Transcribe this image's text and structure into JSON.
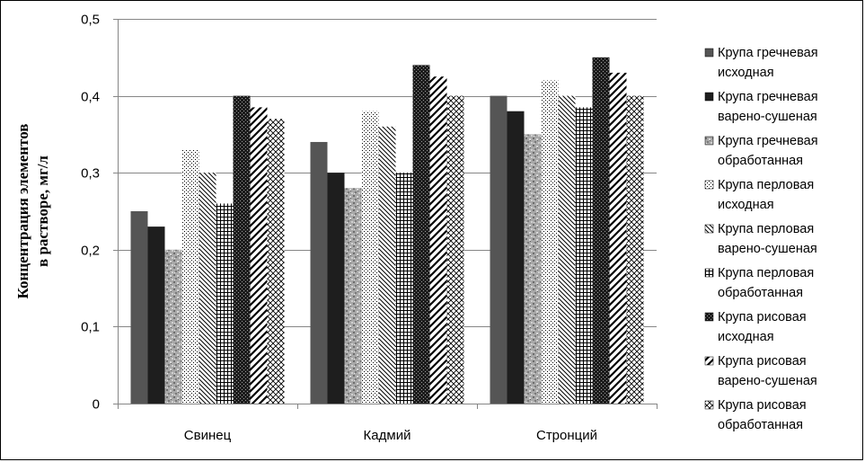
{
  "chart_data": {
    "type": "bar",
    "title": "",
    "xlabel": "",
    "ylabel_lines": [
      "Концентрация элементов",
      "в растворе, мг/л"
    ],
    "ylim": [
      0,
      0.5
    ],
    "yticks": [
      "0",
      "0,1",
      "0,2",
      "0,3",
      "0,4",
      "0,5"
    ],
    "ytick_values": [
      0,
      0.1,
      0.2,
      0.3,
      0.4,
      0.5
    ],
    "grid": true,
    "legend_position": "right",
    "categories": [
      "Свинец",
      "Кадмий",
      "Стронций"
    ],
    "series": [
      {
        "name_lines": [
          "Крупа гречневая",
          "исходная"
        ],
        "values": [
          0.25,
          0.34,
          0.4
        ],
        "pattern": "solid-gray"
      },
      {
        "name_lines": [
          "Крупа гречневая",
          "варено-сушеная"
        ],
        "values": [
          0.23,
          0.3,
          0.38
        ],
        "pattern": "solid-black"
      },
      {
        "name_lines": [
          "Крупа гречневая",
          "обработанная"
        ],
        "values": [
          0.2,
          0.28,
          0.35
        ],
        "pattern": "granite"
      },
      {
        "name_lines": [
          "Крупа перловая",
          "исходная"
        ],
        "values": [
          0.33,
          0.38,
          0.42
        ],
        "pattern": "dots"
      },
      {
        "name_lines": [
          "Крупа перловая",
          "варено-сушеная"
        ],
        "values": [
          0.3,
          0.36,
          0.4
        ],
        "pattern": "diag-down"
      },
      {
        "name_lines": [
          "Крупа перловая",
          "обработанная"
        ],
        "values": [
          0.26,
          0.3,
          0.385
        ],
        "pattern": "grid"
      },
      {
        "name_lines": [
          "Крупа рисовая",
          "исходная"
        ],
        "values": [
          0.4,
          0.44,
          0.45
        ],
        "pattern": "dark-checker"
      },
      {
        "name_lines": [
          "Крупа рисовая",
          "варено-сушеная"
        ],
        "values": [
          0.385,
          0.425,
          0.43
        ],
        "pattern": "diag-up-wide"
      },
      {
        "name_lines": [
          "Крупа рисовая",
          "обработанная"
        ],
        "values": [
          0.37,
          0.4,
          0.4
        ],
        "pattern": "crosshatch"
      }
    ],
    "colors": {
      "axis": "#868686",
      "grid": "#868686",
      "bar_dark": "#1e1e1e",
      "bar_gray": "#555555"
    }
  }
}
